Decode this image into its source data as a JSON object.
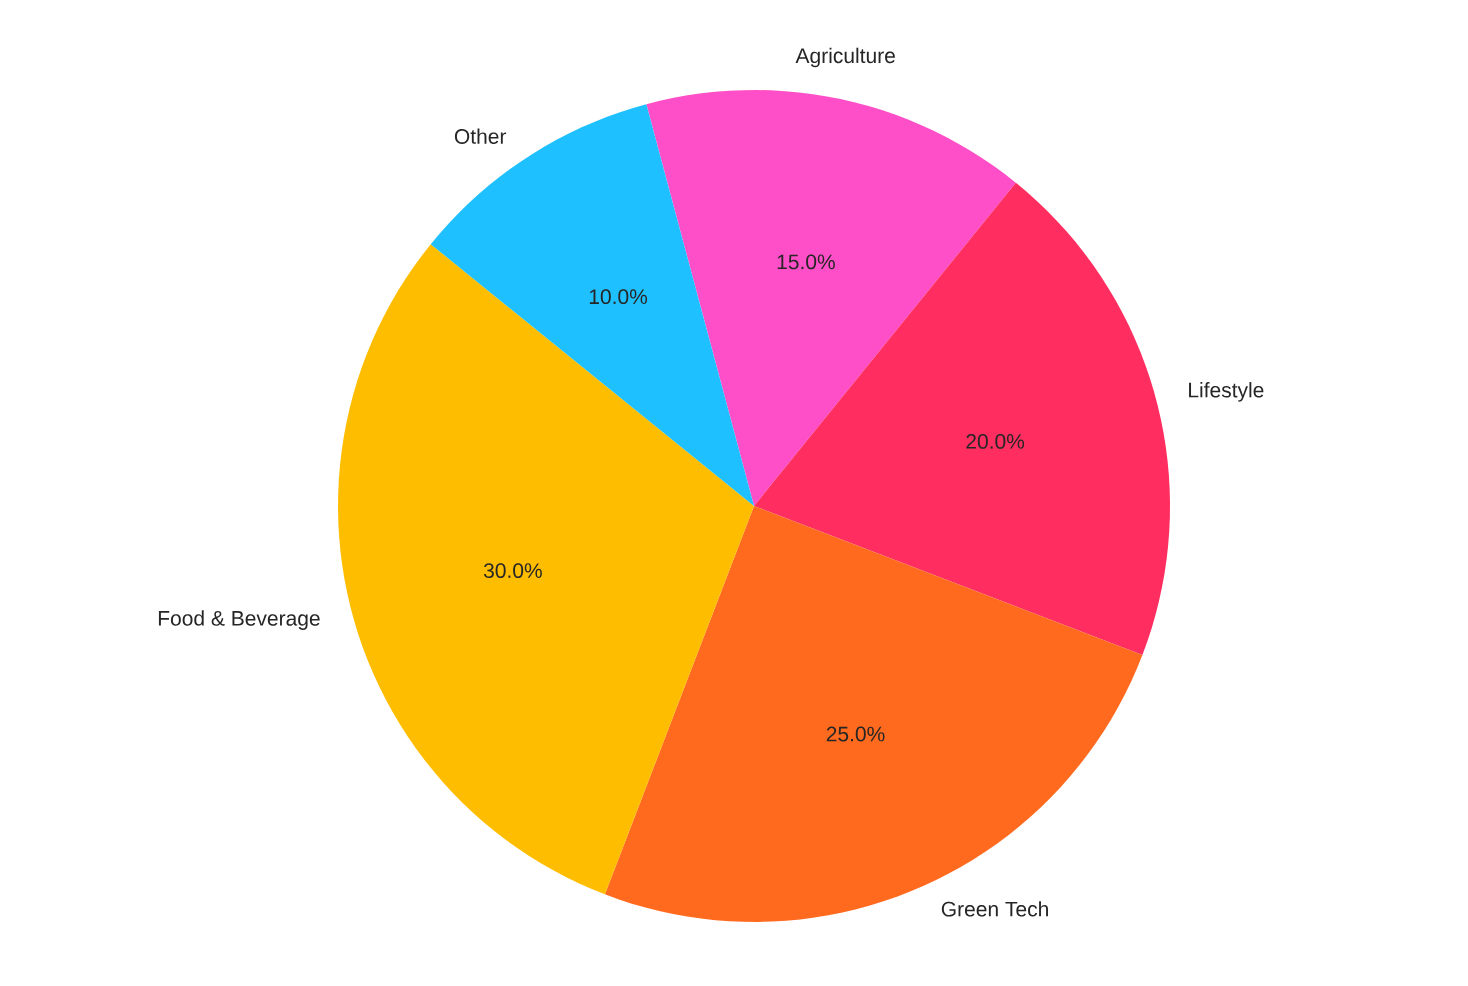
{
  "chart_data": {
    "type": "pie",
    "categories": [
      "Agriculture",
      "Lifestyle",
      "Green Tech",
      "Food & Beverage",
      "Other"
    ],
    "values": [
      15,
      20,
      25,
      30,
      10
    ],
    "value_labels": [
      "15.0%",
      "20.0%",
      "25.0%",
      "30.0%",
      "10.0%"
    ],
    "colors": [
      "#ff4fc8",
      "#ff2d60",
      "#ff6a1f",
      "#ffbd00",
      "#1fc0ff"
    ]
  }
}
